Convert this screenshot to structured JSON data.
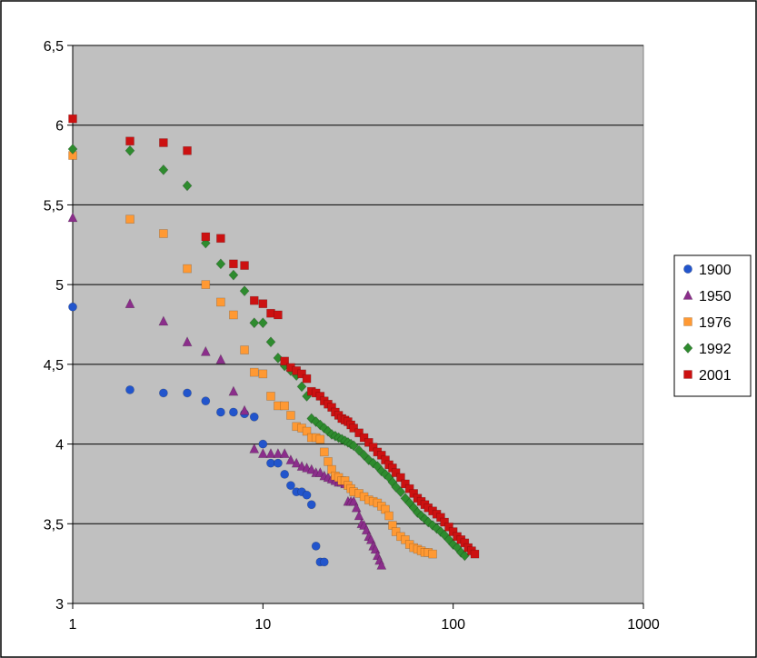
{
  "chart_data": {
    "type": "scatter",
    "title": "",
    "xlabel": "",
    "ylabel": "",
    "x_scale": "log",
    "xlim": [
      1,
      1000
    ],
    "ylim": [
      3,
      6.5
    ],
    "x_ticks": [
      1,
      10,
      100,
      1000
    ],
    "x_tick_labels": [
      "1",
      "10",
      "100",
      "1000"
    ],
    "y_ticks": [
      3,
      3.5,
      4,
      4.5,
      5,
      5.5,
      6,
      6.5
    ],
    "y_tick_labels": [
      "3",
      "3,5",
      "4",
      "4,5",
      "5",
      "5,5",
      "6",
      "6,5"
    ],
    "grid": "horizontal",
    "plot_background": "#c0c0c0",
    "legend_position": "right",
    "series": [
      {
        "name": "1900",
        "color": "#2255cc",
        "marker": "circle",
        "points": [
          [
            1,
            4.86
          ],
          [
            2,
            4.34
          ],
          [
            3,
            4.32
          ],
          [
            4,
            4.32
          ],
          [
            5,
            4.27
          ],
          [
            6,
            4.2
          ],
          [
            7,
            4.2
          ],
          [
            8,
            4.19
          ],
          [
            9,
            4.17
          ],
          [
            10,
            4.0
          ],
          [
            11,
            3.88
          ],
          [
            12,
            3.88
          ],
          [
            13,
            3.81
          ],
          [
            14,
            3.74
          ],
          [
            15,
            3.7
          ],
          [
            16,
            3.7
          ],
          [
            17,
            3.68
          ],
          [
            18,
            3.62
          ],
          [
            19,
            3.36
          ],
          [
            20,
            3.26
          ],
          [
            21,
            3.26
          ]
        ]
      },
      {
        "name": "1950",
        "color": "#8b2e8b",
        "marker": "triangle",
        "points": [
          [
            1,
            5.42
          ],
          [
            2,
            4.88
          ],
          [
            3,
            4.77
          ],
          [
            4,
            4.64
          ],
          [
            5,
            4.58
          ],
          [
            6,
            4.53
          ],
          [
            7,
            4.33
          ],
          [
            8,
            4.21
          ],
          [
            9,
            3.97
          ],
          [
            10,
            3.94
          ],
          [
            11,
            3.94
          ],
          [
            12,
            3.94
          ],
          [
            13,
            3.94
          ],
          [
            14,
            3.9
          ],
          [
            15,
            3.88
          ],
          [
            16,
            3.86
          ],
          [
            17,
            3.85
          ],
          [
            18,
            3.84
          ],
          [
            19,
            3.82
          ],
          [
            20,
            3.82
          ],
          [
            21,
            3.8
          ],
          [
            22,
            3.79
          ],
          [
            23,
            3.78
          ],
          [
            24,
            3.77
          ],
          [
            25,
            3.76
          ],
          [
            26,
            3.76
          ],
          [
            27,
            3.75
          ],
          [
            28,
            3.64
          ],
          [
            29,
            3.64
          ],
          [
            30,
            3.64
          ],
          [
            31,
            3.6
          ],
          [
            32,
            3.55
          ],
          [
            33,
            3.5
          ],
          [
            34,
            3.49
          ],
          [
            35,
            3.46
          ],
          [
            36,
            3.42
          ],
          [
            37,
            3.4
          ],
          [
            38,
            3.36
          ],
          [
            39,
            3.34
          ],
          [
            40,
            3.3
          ],
          [
            41,
            3.27
          ],
          [
            42,
            3.24
          ]
        ]
      },
      {
        "name": "1976",
        "color": "#ff9933",
        "marker": "square",
        "points": [
          [
            1,
            5.81
          ],
          [
            2,
            5.41
          ],
          [
            3,
            5.32
          ],
          [
            4,
            5.1
          ],
          [
            5,
            5.0
          ],
          [
            6,
            4.89
          ],
          [
            7,
            4.81
          ],
          [
            8,
            4.59
          ],
          [
            9,
            4.45
          ],
          [
            10,
            4.44
          ],
          [
            11,
            4.3
          ],
          [
            12,
            4.24
          ],
          [
            13,
            4.24
          ],
          [
            14,
            4.18
          ],
          [
            15,
            4.11
          ],
          [
            16,
            4.1
          ],
          [
            17,
            4.08
          ],
          [
            18,
            4.04
          ],
          [
            19,
            4.04
          ],
          [
            20,
            4.03
          ],
          [
            21,
            3.95
          ],
          [
            22,
            3.89
          ],
          [
            23,
            3.84
          ],
          [
            24,
            3.8
          ],
          [
            25,
            3.79
          ],
          [
            26,
            3.77
          ],
          [
            27,
            3.77
          ],
          [
            28,
            3.74
          ],
          [
            29,
            3.72
          ],
          [
            30,
            3.7
          ],
          [
            32,
            3.69
          ],
          [
            34,
            3.67
          ],
          [
            36,
            3.65
          ],
          [
            38,
            3.64
          ],
          [
            40,
            3.63
          ],
          [
            42,
            3.61
          ],
          [
            44,
            3.59
          ],
          [
            46,
            3.55
          ],
          [
            48,
            3.49
          ],
          [
            50,
            3.45
          ],
          [
            53,
            3.42
          ],
          [
            56,
            3.4
          ],
          [
            59,
            3.37
          ],
          [
            62,
            3.35
          ],
          [
            65,
            3.34
          ],
          [
            68,
            3.33
          ],
          [
            71,
            3.32
          ],
          [
            74,
            3.32
          ],
          [
            78,
            3.31
          ]
        ]
      },
      {
        "name": "1992",
        "color": "#2e8b2e",
        "marker": "diamond",
        "points": [
          [
            1,
            5.85
          ],
          [
            2,
            5.84
          ],
          [
            3,
            5.72
          ],
          [
            4,
            5.62
          ],
          [
            5,
            5.26
          ],
          [
            6,
            5.13
          ],
          [
            7,
            5.06
          ],
          [
            8,
            4.96
          ],
          [
            9,
            4.76
          ],
          [
            10,
            4.76
          ],
          [
            11,
            4.64
          ],
          [
            12,
            4.54
          ],
          [
            13,
            4.49
          ],
          [
            14,
            4.46
          ],
          [
            15,
            4.43
          ],
          [
            16,
            4.36
          ],
          [
            17,
            4.3
          ],
          [
            18,
            4.16
          ],
          [
            19,
            4.14
          ],
          [
            20,
            4.12
          ],
          [
            21,
            4.1
          ],
          [
            22,
            4.08
          ],
          [
            23,
            4.06
          ],
          [
            24,
            4.05
          ],
          [
            25,
            4.04
          ],
          [
            26,
            4.03
          ],
          [
            27,
            4.02
          ],
          [
            28,
            4.01
          ],
          [
            29,
            4.0
          ],
          [
            30,
            3.99
          ],
          [
            32,
            3.96
          ],
          [
            34,
            3.93
          ],
          [
            36,
            3.9
          ],
          [
            38,
            3.88
          ],
          [
            40,
            3.86
          ],
          [
            42,
            3.83
          ],
          [
            44,
            3.81
          ],
          [
            46,
            3.79
          ],
          [
            48,
            3.76
          ],
          [
            50,
            3.73
          ],
          [
            53,
            3.7
          ],
          [
            56,
            3.66
          ],
          [
            59,
            3.63
          ],
          [
            62,
            3.6
          ],
          [
            65,
            3.57
          ],
          [
            68,
            3.55
          ],
          [
            71,
            3.53
          ],
          [
            74,
            3.51
          ],
          [
            78,
            3.49
          ],
          [
            82,
            3.47
          ],
          [
            86,
            3.45
          ],
          [
            90,
            3.43
          ],
          [
            95,
            3.4
          ],
          [
            100,
            3.37
          ],
          [
            105,
            3.35
          ],
          [
            110,
            3.32
          ],
          [
            115,
            3.3
          ]
        ]
      },
      {
        "name": "2001",
        "color": "#cc1111",
        "marker": "square",
        "points": [
          [
            1,
            6.04
          ],
          [
            2,
            5.9
          ],
          [
            3,
            5.89
          ],
          [
            4,
            5.84
          ],
          [
            5,
            5.3
          ],
          [
            6,
            5.29
          ],
          [
            7,
            5.13
          ],
          [
            8,
            5.12
          ],
          [
            9,
            4.9
          ],
          [
            10,
            4.88
          ],
          [
            11,
            4.82
          ],
          [
            12,
            4.81
          ],
          [
            13,
            4.52
          ],
          [
            14,
            4.48
          ],
          [
            15,
            4.46
          ],
          [
            16,
            4.44
          ],
          [
            17,
            4.41
          ],
          [
            18,
            4.33
          ],
          [
            19,
            4.32
          ],
          [
            20,
            4.3
          ],
          [
            21,
            4.27
          ],
          [
            22,
            4.25
          ],
          [
            23,
            4.23
          ],
          [
            24,
            4.2
          ],
          [
            25,
            4.18
          ],
          [
            26,
            4.16
          ],
          [
            27,
            4.15
          ],
          [
            28,
            4.14
          ],
          [
            29,
            4.12
          ],
          [
            30,
            4.1
          ],
          [
            32,
            4.07
          ],
          [
            34,
            4.04
          ],
          [
            36,
            4.01
          ],
          [
            38,
            3.98
          ],
          [
            40,
            3.95
          ],
          [
            42,
            3.93
          ],
          [
            44,
            3.9
          ],
          [
            46,
            3.87
          ],
          [
            48,
            3.85
          ],
          [
            50,
            3.82
          ],
          [
            53,
            3.79
          ],
          [
            56,
            3.75
          ],
          [
            59,
            3.72
          ],
          [
            62,
            3.69
          ],
          [
            65,
            3.66
          ],
          [
            68,
            3.64
          ],
          [
            71,
            3.62
          ],
          [
            74,
            3.6
          ],
          [
            78,
            3.58
          ],
          [
            82,
            3.56
          ],
          [
            86,
            3.54
          ],
          [
            90,
            3.51
          ],
          [
            95,
            3.48
          ],
          [
            100,
            3.45
          ],
          [
            105,
            3.42
          ],
          [
            110,
            3.4
          ],
          [
            115,
            3.38
          ],
          [
            120,
            3.35
          ],
          [
            125,
            3.33
          ],
          [
            130,
            3.31
          ]
        ]
      }
    ]
  }
}
